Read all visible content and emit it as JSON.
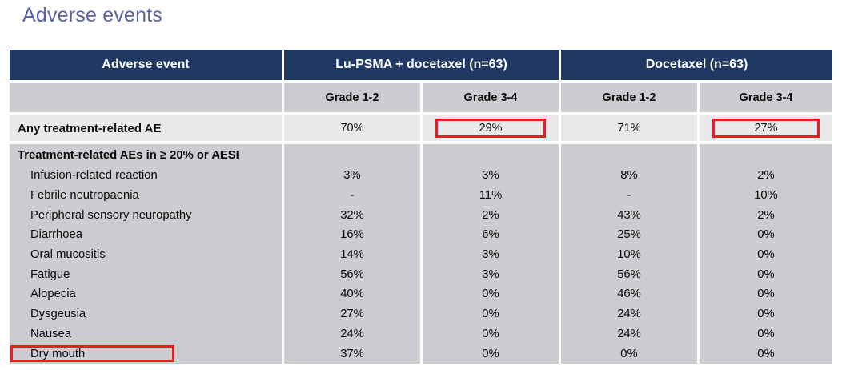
{
  "slide": {
    "title": "Adverse events"
  },
  "colors": {
    "title": "#5B61A8",
    "header_navy": "#1F3864",
    "subheader_gray": "#CDCDD1",
    "summary_gray": "#E9E9EC",
    "section_gray": "#CDCDD1",
    "highlight_red": "#EE1C1C"
  },
  "table": {
    "header": {
      "col_event": "Adverse event",
      "group1": "Lu-PSMA + docetaxel (n=63)",
      "group2": "Docetaxel (n=63)"
    },
    "subheaders": [
      "Grade 1-2",
      "Grade 3-4",
      "Grade 1-2",
      "Grade 3-4"
    ],
    "summary_row": {
      "label": "Any treatment-related AE",
      "values": [
        "70%",
        "29%",
        "71%",
        "27%"
      ],
      "boxed": [
        false,
        true,
        false,
        true
      ]
    },
    "section": {
      "label": "Treatment-related AEs in ≥ 20% or AESI",
      "rows": [
        {
          "label": "Infusion-related reaction",
          "values": [
            "3%",
            "3%",
            "8%",
            "2%"
          ],
          "label_boxed": false
        },
        {
          "label": "Febrile neutropaenia",
          "values": [
            "-",
            "11%",
            "-",
            "10%"
          ],
          "label_boxed": false
        },
        {
          "label": "Peripheral sensory neuropathy",
          "values": [
            "32%",
            "2%",
            "43%",
            "2%"
          ],
          "label_boxed": false
        },
        {
          "label": "Diarrhoea",
          "values": [
            "16%",
            "6%",
            "25%",
            "0%"
          ],
          "label_boxed": false
        },
        {
          "label": "Oral mucositis",
          "values": [
            "14%",
            "3%",
            "10%",
            "0%"
          ],
          "label_boxed": false
        },
        {
          "label": "Fatigue",
          "values": [
            "56%",
            "3%",
            "56%",
            "0%"
          ],
          "label_boxed": false
        },
        {
          "label": "Alopecia",
          "values": [
            "40%",
            "0%",
            "46%",
            "0%"
          ],
          "label_boxed": false
        },
        {
          "label": "Dysgeusia",
          "values": [
            "27%",
            "0%",
            "24%",
            "0%"
          ],
          "label_boxed": false
        },
        {
          "label": "Nausea",
          "values": [
            "24%",
            "0%",
            "24%",
            "0%"
          ],
          "label_boxed": false
        },
        {
          "label": "Dry mouth",
          "values": [
            "37%",
            "0%",
            "0%",
            "0%"
          ],
          "label_boxed": true
        }
      ]
    }
  }
}
